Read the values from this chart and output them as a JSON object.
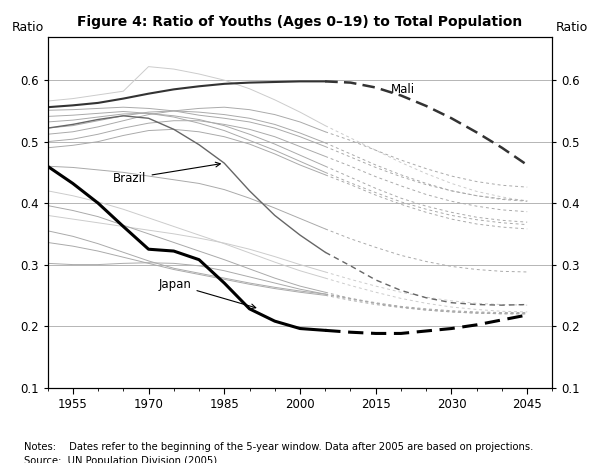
{
  "title": "Figure 4: Ratio of Youths (Ages 0–19) to Total Population",
  "ylabel": "Ratio",
  "xlim": [
    1950,
    2050
  ],
  "ylim": [
    0.1,
    0.67
  ],
  "yticks": [
    0.1,
    0.2,
    0.3,
    0.4,
    0.5,
    0.6
  ],
  "xticks": [
    1955,
    1970,
    1985,
    2000,
    2015,
    2030,
    2045
  ],
  "xticks_minor": [
    1950,
    1955,
    1960,
    1965,
    1970,
    1975,
    1980,
    1985,
    1990,
    1995,
    2000,
    2005,
    2010,
    2015,
    2020,
    2025,
    2030,
    2035,
    2040,
    2045,
    2050
  ],
  "notes": "Notes:  Dates refer to the beginning of the 5-year window. Data after 2005 are based on projections.",
  "source": "Source:  UN Population Division (2005)",
  "years_hist": [
    1950,
    1955,
    1960,
    1965,
    1970,
    1975,
    1980,
    1985,
    1990,
    1995,
    2000,
    2005
  ],
  "years_proj": [
    2005,
    2010,
    2015,
    2020,
    2025,
    2030,
    2035,
    2040,
    2045
  ],
  "japan_hist": [
    0.46,
    0.432,
    0.4,
    0.362,
    0.325,
    0.322,
    0.308,
    0.27,
    0.228,
    0.208,
    0.196,
    0.193
  ],
  "japan_proj": [
    0.193,
    0.19,
    0.188,
    0.188,
    0.192,
    0.196,
    0.202,
    0.21,
    0.218
  ],
  "brazil_hist": [
    0.522,
    0.528,
    0.536,
    0.542,
    0.538,
    0.52,
    0.495,
    0.465,
    0.42,
    0.38,
    0.348,
    0.32
  ],
  "brazil_proj": [
    0.32,
    0.298,
    0.275,
    0.258,
    0.246,
    0.238,
    0.235,
    0.234,
    0.235
  ],
  "mali_hist": [
    0.556,
    0.559,
    0.563,
    0.57,
    0.578,
    0.585,
    0.59,
    0.594,
    0.596,
    0.597,
    0.598,
    0.598
  ],
  "mali_proj": [
    0.598,
    0.596,
    0.588,
    0.575,
    0.558,
    0.538,
    0.515,
    0.49,
    0.462
  ],
  "bg_lines_hist": [
    [
      0.551,
      0.552,
      0.554,
      0.556,
      0.554,
      0.55,
      0.543,
      0.538,
      0.532,
      0.522,
      0.508,
      0.492
    ],
    [
      0.541,
      0.543,
      0.546,
      0.549,
      0.546,
      0.54,
      0.53,
      0.518,
      0.502,
      0.486,
      0.468,
      0.45
    ],
    [
      0.532,
      0.535,
      0.54,
      0.545,
      0.546,
      0.542,
      0.536,
      0.526,
      0.512,
      0.496,
      0.478,
      0.46
    ],
    [
      0.522,
      0.526,
      0.534,
      0.542,
      0.548,
      0.55,
      0.548,
      0.544,
      0.538,
      0.528,
      0.514,
      0.498
    ],
    [
      0.512,
      0.516,
      0.524,
      0.534,
      0.544,
      0.55,
      0.554,
      0.556,
      0.552,
      0.544,
      0.532,
      0.516
    ],
    [
      0.5,
      0.504,
      0.512,
      0.522,
      0.53,
      0.534,
      0.534,
      0.528,
      0.52,
      0.508,
      0.492,
      0.476
    ],
    [
      0.49,
      0.494,
      0.5,
      0.51,
      0.518,
      0.52,
      0.516,
      0.508,
      0.496,
      0.48,
      0.462,
      0.446
    ],
    [
      0.46,
      0.458,
      0.454,
      0.45,
      0.444,
      0.438,
      0.432,
      0.422,
      0.408,
      0.392,
      0.375,
      0.358
    ],
    [
      0.396,
      0.388,
      0.378,
      0.364,
      0.35,
      0.336,
      0.322,
      0.308,
      0.293,
      0.278,
      0.265,
      0.255
    ],
    [
      0.355,
      0.346,
      0.334,
      0.32,
      0.306,
      0.294,
      0.286,
      0.278,
      0.27,
      0.263,
      0.257,
      0.252
    ],
    [
      0.302,
      0.3,
      0.3,
      0.302,
      0.303,
      0.302,
      0.298,
      0.29,
      0.28,
      0.27,
      0.26,
      0.252
    ],
    [
      0.336,
      0.33,
      0.322,
      0.312,
      0.302,
      0.292,
      0.284,
      0.276,
      0.268,
      0.261,
      0.255,
      0.25
    ]
  ],
  "bg_lines_proj": [
    [
      0.492,
      0.475,
      0.458,
      0.443,
      0.43,
      0.42,
      0.412,
      0.407,
      0.404
    ],
    [
      0.45,
      0.433,
      0.417,
      0.402,
      0.39,
      0.38,
      0.373,
      0.368,
      0.365
    ],
    [
      0.46,
      0.442,
      0.424,
      0.408,
      0.395,
      0.385,
      0.377,
      0.372,
      0.369
    ],
    [
      0.498,
      0.48,
      0.462,
      0.446,
      0.432,
      0.42,
      0.412,
      0.406,
      0.403
    ],
    [
      0.516,
      0.502,
      0.486,
      0.47,
      0.456,
      0.444,
      0.435,
      0.429,
      0.426
    ],
    [
      0.476,
      0.46,
      0.443,
      0.428,
      0.414,
      0.403,
      0.395,
      0.389,
      0.386
    ],
    [
      0.446,
      0.43,
      0.413,
      0.398,
      0.385,
      0.374,
      0.366,
      0.361,
      0.358
    ],
    [
      0.358,
      0.342,
      0.328,
      0.315,
      0.305,
      0.297,
      0.292,
      0.289,
      0.288
    ],
    [
      0.255,
      0.245,
      0.237,
      0.231,
      0.226,
      0.223,
      0.221,
      0.22,
      0.22
    ],
    [
      0.252,
      0.244,
      0.237,
      0.231,
      0.227,
      0.224,
      0.222,
      0.221,
      0.22
    ],
    [
      0.252,
      0.245,
      0.238,
      0.232,
      0.228,
      0.225,
      0.223,
      0.222,
      0.222
    ],
    [
      0.25,
      0.242,
      0.235,
      0.23,
      0.226,
      0.223,
      0.221,
      0.22,
      0.22
    ]
  ],
  "extra_hist_light": [
    [
      0.566,
      0.57,
      0.576,
      0.582,
      0.622,
      0.618,
      0.61,
      0.6,
      0.586,
      0.568,
      0.548,
      0.526
    ],
    [
      0.38,
      0.374,
      0.368,
      0.362,
      0.356,
      0.35,
      0.343,
      0.335,
      0.325,
      0.313,
      0.3,
      0.288
    ],
    [
      0.42,
      0.412,
      0.402,
      0.39,
      0.376,
      0.362,
      0.348,
      0.334,
      0.319,
      0.304,
      0.29,
      0.278
    ]
  ],
  "extra_proj_light": [
    [
      0.526,
      0.506,
      0.486,
      0.466,
      0.448,
      0.432,
      0.419,
      0.41,
      0.403
    ],
    [
      0.288,
      0.276,
      0.265,
      0.255,
      0.247,
      0.241,
      0.237,
      0.235,
      0.234
    ],
    [
      0.278,
      0.266,
      0.255,
      0.245,
      0.237,
      0.231,
      0.227,
      0.224,
      0.223
    ]
  ]
}
